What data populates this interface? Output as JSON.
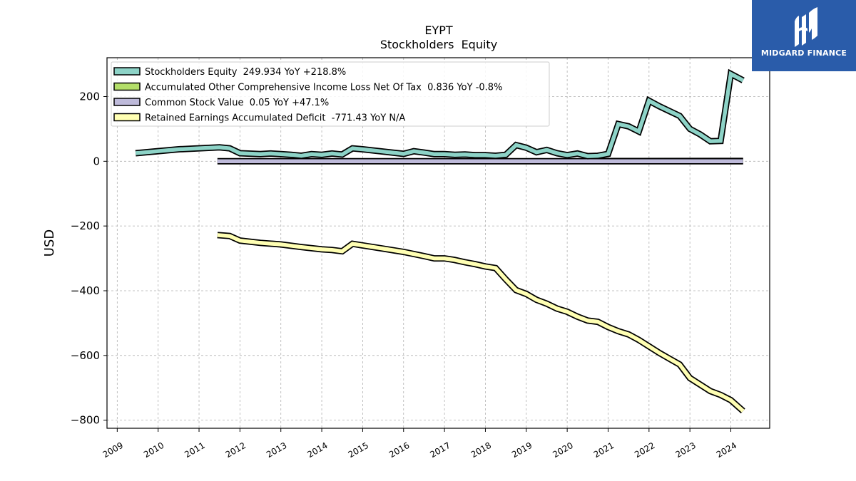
{
  "chart_data": {
    "type": "line",
    "title": "EYPT",
    "subtitle": "Stockholders  Equity",
    "ylabel": "USD",
    "xlabel": "",
    "xlim": [
      2008.75,
      2024.95
    ],
    "ylim": [
      -825,
      320
    ],
    "yticks": [
      200,
      0,
      -200,
      -400,
      -600,
      -800
    ],
    "ytick_labels": [
      "200",
      "0",
      "−200",
      "−400",
      "−600",
      "−800"
    ],
    "xticks": [
      "2009",
      "2010",
      "2011",
      "2012",
      "2013",
      "2014",
      "2015",
      "2016",
      "2017",
      "2018",
      "2019",
      "2020",
      "2021",
      "2022",
      "2023",
      "2024"
    ],
    "grid": true,
    "legend_position": "top-left",
    "series": [
      {
        "name": "Stockholders Equity",
        "legend_label": "Stockholders Equity  249.934 YoY +218.8%",
        "color": "#8dd3c7",
        "x": [
          2009.45,
          2010.5,
          2011.5,
          2011.75,
          2012.0,
          2012.5,
          2012.75,
          2013.0,
          2013.25,
          2013.5,
          2013.75,
          2014.0,
          2014.25,
          2014.5,
          2014.75,
          2015.0,
          2015.5,
          2016.0,
          2016.25,
          2016.5,
          2016.75,
          2017.0,
          2017.25,
          2017.5,
          2017.75,
          2018.0,
          2018.25,
          2018.5,
          2018.75,
          2019.0,
          2019.25,
          2019.5,
          2019.75,
          2020.0,
          2020.25,
          2020.5,
          2020.75,
          2021.0,
          2021.25,
          2021.5,
          2021.75,
          2022.0,
          2022.25,
          2022.5,
          2022.75,
          2023.0,
          2023.25,
          2023.5,
          2023.75,
          2024.0,
          2024.3
        ],
        "values": [
          25,
          37,
          43,
          40,
          25,
          22,
          24,
          22,
          20,
          17,
          22,
          20,
          24,
          21,
          40,
          37,
          30,
          23,
          31,
          27,
          22,
          22,
          20,
          21,
          19,
          19,
          17,
          20,
          50,
          42,
          28,
          35,
          25,
          19,
          24,
          16,
          17,
          23,
          115,
          108,
          92,
          187,
          170,
          155,
          140,
          100,
          83,
          62,
          63,
          270,
          250
        ]
      },
      {
        "name": "Accumulated Other Comprehensive Income Loss Net Of Tax",
        "legend_label": "Accumulated Other Comprehensive Income Loss Net Of Tax  0.836 YoY -0.8%",
        "color": "#b3de69",
        "x": [
          2020.5,
          2024.3
        ],
        "values": [
          0.8,
          0.836
        ]
      },
      {
        "name": "Common Stock Value",
        "legend_label": "Common Stock Value  0.05 YoY +47.1%",
        "color": "#bebada",
        "x": [
          2011.45,
          2024.3
        ],
        "values": [
          0.03,
          0.05
        ]
      },
      {
        "name": "Retained Earnings Accumulated Deficit",
        "legend_label": "Retained Earnings Accumulated Deficit  -771.43 YoY N/A",
        "color": "#ffffb3",
        "x": [
          2011.45,
          2011.75,
          2012.0,
          2012.5,
          2013.0,
          2013.5,
          2014.0,
          2014.25,
          2014.5,
          2014.75,
          2015.0,
          2015.5,
          2016.0,
          2016.5,
          2016.75,
          2017.0,
          2017.25,
          2017.5,
          2017.75,
          2018.0,
          2018.25,
          2018.5,
          2018.75,
          2019.0,
          2019.25,
          2019.5,
          2019.75,
          2020.0,
          2020.25,
          2020.5,
          2020.75,
          2021.0,
          2021.25,
          2021.5,
          2021.75,
          2022.0,
          2022.25,
          2022.5,
          2022.75,
          2023.0,
          2023.25,
          2023.5,
          2023.75,
          2024.0,
          2024.3
        ],
        "values": [
          -228,
          -231,
          -245,
          -252,
          -257,
          -265,
          -272,
          -274,
          -278,
          -255,
          -260,
          -270,
          -280,
          -293,
          -300,
          -300,
          -305,
          -312,
          -318,
          -325,
          -330,
          -365,
          -398,
          -410,
          -428,
          -440,
          -455,
          -465,
          -480,
          -492,
          -496,
          -512,
          -525,
          -535,
          -552,
          -572,
          -592,
          -610,
          -628,
          -670,
          -690,
          -710,
          -722,
          -738,
          -771.43
        ]
      }
    ]
  },
  "logo": {
    "text": "MIDGARD FINANCE",
    "background": "#2a5caa"
  }
}
